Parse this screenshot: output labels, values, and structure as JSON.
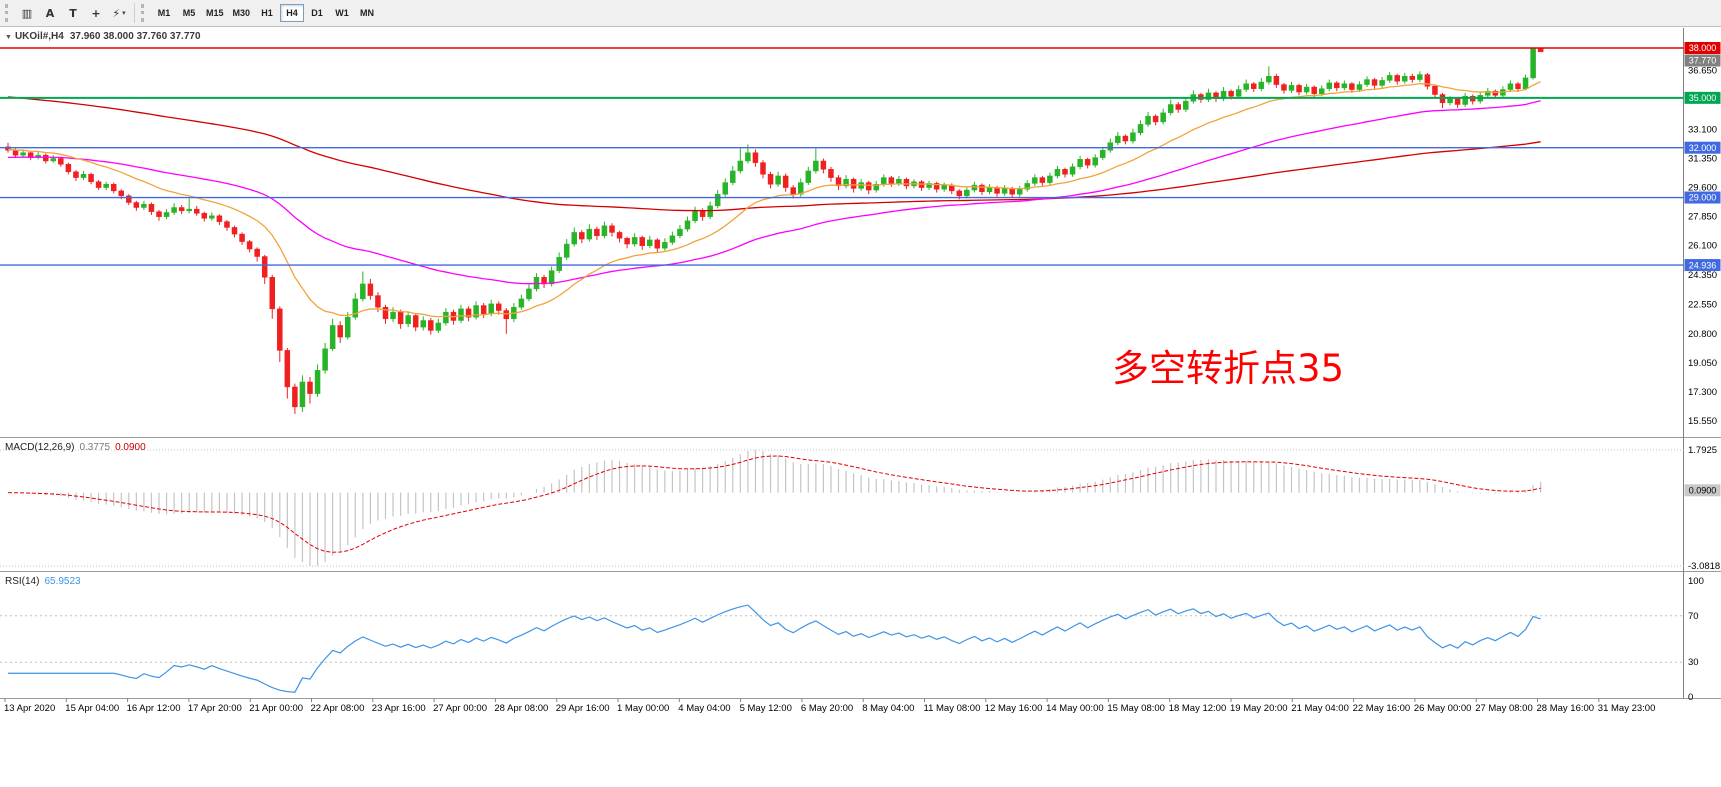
{
  "toolbar": {
    "left_icons": [
      {
        "name": "chart-type-icon",
        "glyph": "▥"
      },
      {
        "name": "text-tool-icon",
        "glyph": "A"
      },
      {
        "name": "text-label-tool-icon",
        "glyph": "T"
      },
      {
        "name": "crosshair-tool-icon",
        "glyph": "+"
      },
      {
        "name": "indicators-tool-icon",
        "glyph": "⚡",
        "dropdown": true
      }
    ],
    "timeframes": [
      "M1",
      "M5",
      "M15",
      "M30",
      "H1",
      "H4",
      "D1",
      "W1",
      "MN"
    ],
    "active_timeframe": "H4"
  },
  "chart_data": {
    "type": "candlestick",
    "symbol": "UKOil#",
    "timeframe": "H4",
    "title_text": "UKOil#,H4",
    "ohlc_text": "37.960 38.000 37.760 37.770",
    "current": {
      "open": 37.96,
      "high": 38.0,
      "low": 37.76,
      "close": 37.77
    },
    "colors": {
      "up": "#28b428",
      "down": "#ef2020",
      "background": "#ffffff"
    },
    "price_axis_labels": [
      "36.650",
      "33.100",
      "31.350",
      "29.600",
      "27.850",
      "26.100",
      "24.350",
      "22.550",
      "20.800",
      "19.050",
      "17.300",
      "15.550"
    ],
    "hlines": [
      {
        "value": 38.0,
        "color": "#e00000",
        "label": "38.000",
        "width": 1.4
      },
      {
        "value": 35.0,
        "color": "#00a651",
        "label": "35.000",
        "width": 2
      },
      {
        "value": 32.0,
        "color": "#4169e1",
        "label": "32.000",
        "width": 1.4
      },
      {
        "value": 29.0,
        "color": "#4169e1",
        "label": "29.000",
        "width": 1.4
      },
      {
        "value": 24.936,
        "color": "#4169e1",
        "label": "24.936",
        "width": 1.4
      }
    ],
    "current_price_badge": {
      "value": 37.77,
      "label": "37.770",
      "bg": "#808080"
    },
    "mas": [
      {
        "name": "ma-slow-red",
        "color": "#d40000",
        "period": 160,
        "seed": 35.1
      },
      {
        "name": "ma-mid-magenta",
        "color": "#ff00ff",
        "period": 56,
        "seed": 31.4
      },
      {
        "name": "ma-fast-orange",
        "color": "#f2a33c",
        "period": 18,
        "seed": 31.9
      }
    ],
    "macd": {
      "label": "MACD(12,26,9)",
      "value_main": "0.3775",
      "value_signal": "0.0900",
      "fast": 12,
      "slow": 26,
      "signal": 9,
      "scale_max": 1.7925,
      "scale_min": -3.0818,
      "scale_max_label": "1.7925",
      "scale_min_label": "-3.0818",
      "hist_color": "#c4c4c4",
      "signal_color": "#e00000",
      "current_badge": {
        "value": 0.09,
        "label": "0.0900",
        "bg": "#c8c8c8"
      }
    },
    "rsi": {
      "label": "RSI(14)",
      "value": "65.9523",
      "period": 14,
      "line_color": "#3d95e8",
      "levels": [
        "100",
        "70",
        "30",
        "0"
      ],
      "level_lines": [
        70,
        30
      ]
    },
    "annotation": {
      "text": "多空转折点35",
      "color": "#ff0000"
    },
    "time_labels": [
      "13 Apr 2020",
      "15 Apr 04:00",
      "16 Apr 12:00",
      "17 Apr 20:00",
      "21 Apr 00:00",
      "22 Apr 08:00",
      "23 Apr 16:00",
      "27 Apr 00:00",
      "28 Apr 08:00",
      "29 Apr 16:00",
      "1 May 00:00",
      "4 May 04:00",
      "5 May 12:00",
      "6 May 20:00",
      "8 May 04:00",
      "11 May 08:00",
      "12 May 16:00",
      "14 May 00:00",
      "15 May 08:00",
      "18 May 12:00",
      "19 May 20:00",
      "21 May 04:00",
      "22 May 16:00",
      "26 May 00:00",
      "27 May 08:00",
      "28 May 16:00",
      "31 May 23:00"
    ],
    "candles": [
      [
        32.05,
        32.3,
        31.7,
        31.85
      ],
      [
        31.85,
        31.95,
        31.4,
        31.55
      ],
      [
        31.55,
        31.9,
        31.45,
        31.7
      ],
      [
        31.7,
        31.8,
        31.25,
        31.4
      ],
      [
        31.4,
        31.75,
        31.3,
        31.55
      ],
      [
        31.55,
        31.65,
        31.05,
        31.2
      ],
      [
        31.2,
        31.55,
        31.1,
        31.35
      ],
      [
        31.35,
        31.45,
        30.85,
        31.0
      ],
      [
        31.0,
        31.1,
        30.4,
        30.55
      ],
      [
        30.55,
        30.65,
        30.0,
        30.2
      ],
      [
        30.2,
        30.6,
        30.05,
        30.4
      ],
      [
        30.4,
        30.5,
        29.8,
        29.95
      ],
      [
        29.95,
        30.05,
        29.45,
        29.6
      ],
      [
        29.6,
        29.95,
        29.45,
        29.8
      ],
      [
        29.8,
        29.9,
        29.25,
        29.4
      ],
      [
        29.4,
        29.5,
        28.9,
        29.1
      ],
      [
        29.1,
        29.2,
        28.55,
        28.7
      ],
      [
        28.7,
        28.8,
        28.2,
        28.4
      ],
      [
        28.4,
        28.8,
        28.25,
        28.6
      ],
      [
        28.6,
        28.7,
        27.95,
        28.15
      ],
      [
        28.15,
        28.25,
        27.6,
        27.85
      ],
      [
        27.85,
        28.3,
        27.7,
        28.1
      ],
      [
        28.1,
        28.65,
        27.95,
        28.4
      ],
      [
        28.4,
        28.55,
        28.0,
        28.2
      ],
      [
        28.2,
        28.95,
        28.05,
        28.3
      ],
      [
        28.3,
        28.5,
        27.9,
        28.05
      ],
      [
        28.05,
        28.15,
        27.55,
        27.75
      ],
      [
        27.75,
        28.1,
        27.6,
        27.9
      ],
      [
        27.9,
        28.0,
        27.35,
        27.55
      ],
      [
        27.55,
        27.65,
        27.0,
        27.2
      ],
      [
        27.2,
        27.3,
        26.6,
        26.8
      ],
      [
        26.8,
        26.9,
        26.15,
        26.35
      ],
      [
        26.35,
        26.45,
        25.7,
        25.9
      ],
      [
        25.9,
        26.0,
        25.15,
        25.45
      ],
      [
        25.45,
        25.55,
        23.8,
        24.2
      ],
      [
        24.2,
        24.35,
        21.7,
        22.3
      ],
      [
        22.3,
        22.45,
        19.1,
        19.8
      ],
      [
        19.8,
        19.95,
        16.9,
        17.6
      ],
      [
        17.6,
        17.8,
        15.98,
        16.4
      ],
      [
        16.4,
        18.3,
        16.1,
        17.9
      ],
      [
        17.9,
        18.2,
        16.6,
        17.2
      ],
      [
        17.2,
        18.95,
        17.0,
        18.6
      ],
      [
        18.6,
        20.25,
        18.4,
        19.9
      ],
      [
        19.9,
        21.7,
        19.75,
        21.3
      ],
      [
        21.3,
        21.55,
        20.25,
        20.6
      ],
      [
        20.6,
        22.1,
        20.45,
        21.8
      ],
      [
        21.8,
        23.25,
        21.65,
        22.9
      ],
      [
        22.9,
        24.55,
        22.75,
        23.8
      ],
      [
        23.8,
        24.1,
        22.85,
        23.1
      ],
      [
        23.1,
        23.3,
        22.1,
        22.4
      ],
      [
        22.4,
        22.55,
        21.4,
        21.7
      ],
      [
        21.7,
        22.4,
        21.5,
        22.1
      ],
      [
        22.1,
        22.25,
        21.1,
        21.4
      ],
      [
        21.4,
        22.15,
        21.2,
        21.9
      ],
      [
        21.9,
        22.05,
        20.95,
        21.2
      ],
      [
        21.2,
        21.85,
        21.0,
        21.6
      ],
      [
        21.6,
        21.75,
        20.75,
        21.0
      ],
      [
        21.0,
        21.7,
        20.85,
        21.45
      ],
      [
        21.45,
        22.35,
        21.3,
        22.1
      ],
      [
        22.1,
        22.25,
        21.35,
        21.6
      ],
      [
        21.6,
        22.55,
        21.45,
        22.3
      ],
      [
        22.3,
        22.45,
        21.55,
        21.8
      ],
      [
        21.8,
        22.75,
        21.65,
        22.5
      ],
      [
        22.5,
        22.65,
        21.75,
        22.0
      ],
      [
        22.0,
        22.85,
        21.85,
        22.6
      ],
      [
        22.6,
        22.75,
        21.95,
        22.2
      ],
      [
        22.2,
        22.35,
        20.8,
        21.7
      ],
      [
        21.7,
        22.65,
        21.5,
        22.4
      ],
      [
        22.4,
        23.15,
        22.25,
        22.9
      ],
      [
        22.9,
        23.75,
        22.75,
        23.5
      ],
      [
        23.5,
        24.45,
        23.35,
        24.2
      ],
      [
        24.2,
        24.35,
        23.55,
        23.8
      ],
      [
        23.8,
        24.85,
        23.65,
        24.6
      ],
      [
        24.6,
        25.7,
        24.45,
        25.4
      ],
      [
        25.4,
        26.5,
        25.25,
        26.2
      ],
      [
        26.2,
        27.2,
        26.05,
        26.9
      ],
      [
        26.9,
        27.05,
        26.25,
        26.5
      ],
      [
        26.5,
        27.4,
        26.35,
        27.1
      ],
      [
        27.1,
        27.25,
        26.45,
        26.7
      ],
      [
        26.7,
        27.55,
        26.55,
        27.3
      ],
      [
        27.3,
        27.45,
        26.65,
        26.9
      ],
      [
        26.9,
        27.0,
        26.3,
        26.55
      ],
      [
        26.55,
        26.65,
        25.95,
        26.2
      ],
      [
        26.2,
        26.85,
        26.05,
        26.6
      ],
      [
        26.6,
        26.7,
        25.85,
        26.1
      ],
      [
        26.1,
        26.7,
        25.95,
        26.45
      ],
      [
        26.45,
        26.55,
        25.7,
        25.95
      ],
      [
        25.95,
        26.55,
        25.8,
        26.3
      ],
      [
        26.3,
        26.95,
        26.15,
        26.7
      ],
      [
        26.7,
        27.35,
        26.55,
        27.1
      ],
      [
        27.1,
        27.85,
        26.95,
        27.6
      ],
      [
        27.6,
        28.45,
        27.45,
        28.2
      ],
      [
        28.2,
        28.35,
        27.6,
        27.85
      ],
      [
        27.85,
        28.75,
        27.7,
        28.5
      ],
      [
        28.5,
        29.45,
        28.35,
        29.2
      ],
      [
        29.2,
        30.15,
        29.05,
        29.9
      ],
      [
        29.9,
        30.9,
        29.75,
        30.6
      ],
      [
        30.6,
        31.95,
        30.45,
        31.2
      ],
      [
        31.2,
        32.2,
        31.05,
        31.7
      ],
      [
        31.7,
        31.9,
        30.85,
        31.1
      ],
      [
        31.1,
        31.25,
        30.15,
        30.4
      ],
      [
        30.4,
        30.55,
        29.55,
        29.8
      ],
      [
        29.8,
        30.55,
        29.65,
        30.3
      ],
      [
        30.3,
        30.45,
        29.35,
        29.6
      ],
      [
        29.6,
        29.75,
        28.95,
        29.2
      ],
      [
        29.2,
        30.15,
        29.05,
        29.9
      ],
      [
        29.9,
        30.85,
        29.75,
        30.6
      ],
      [
        30.6,
        31.95,
        30.45,
        31.2
      ],
      [
        31.2,
        31.35,
        30.45,
        30.7
      ],
      [
        30.7,
        30.85,
        29.95,
        30.2
      ],
      [
        30.2,
        30.35,
        29.45,
        29.7
      ],
      [
        29.7,
        30.35,
        29.55,
        30.1
      ],
      [
        30.1,
        30.2,
        29.3,
        29.55
      ],
      [
        29.55,
        30.1,
        29.4,
        29.9
      ],
      [
        29.9,
        30.0,
        29.2,
        29.45
      ],
      [
        29.45,
        30.0,
        29.3,
        29.8
      ],
      [
        29.8,
        30.4,
        29.65,
        30.2
      ],
      [
        30.2,
        30.3,
        29.65,
        29.85
      ],
      [
        29.85,
        30.3,
        29.7,
        30.1
      ],
      [
        30.1,
        30.2,
        29.5,
        29.7
      ],
      [
        29.7,
        30.1,
        29.55,
        29.95
      ],
      [
        29.95,
        30.05,
        29.4,
        29.6
      ],
      [
        29.6,
        30.0,
        29.45,
        29.85
      ],
      [
        29.85,
        29.95,
        29.3,
        29.5
      ],
      [
        29.5,
        29.9,
        29.35,
        29.75
      ],
      [
        29.75,
        29.85,
        29.2,
        29.4
      ],
      [
        29.4,
        29.5,
        28.9,
        29.1
      ],
      [
        29.1,
        29.6,
        28.95,
        29.45
      ],
      [
        29.45,
        29.95,
        29.3,
        29.75
      ],
      [
        29.75,
        29.85,
        29.15,
        29.35
      ],
      [
        29.35,
        29.8,
        29.2,
        29.6
      ],
      [
        29.6,
        29.7,
        29.05,
        29.25
      ],
      [
        29.25,
        29.75,
        29.1,
        29.55
      ],
      [
        29.55,
        29.65,
        29.0,
        29.2
      ],
      [
        29.2,
        29.7,
        29.05,
        29.5
      ],
      [
        29.5,
        30.05,
        29.35,
        29.85
      ],
      [
        29.85,
        30.4,
        29.7,
        30.2
      ],
      [
        30.2,
        30.3,
        29.7,
        29.9
      ],
      [
        29.9,
        30.5,
        29.75,
        30.3
      ],
      [
        30.3,
        30.9,
        30.15,
        30.7
      ],
      [
        30.7,
        30.8,
        30.2,
        30.4
      ],
      [
        30.4,
        31.05,
        30.25,
        30.85
      ],
      [
        30.85,
        31.5,
        30.7,
        31.3
      ],
      [
        31.3,
        31.4,
        30.75,
        30.95
      ],
      [
        30.95,
        31.6,
        30.8,
        31.4
      ],
      [
        31.4,
        32.05,
        31.25,
        31.85
      ],
      [
        31.85,
        32.55,
        31.7,
        32.3
      ],
      [
        32.3,
        32.95,
        32.15,
        32.7
      ],
      [
        32.7,
        32.8,
        32.2,
        32.4
      ],
      [
        32.4,
        33.15,
        32.25,
        32.9
      ],
      [
        32.9,
        33.65,
        32.75,
        33.4
      ],
      [
        33.4,
        34.15,
        33.25,
        33.9
      ],
      [
        33.9,
        34.0,
        33.35,
        33.55
      ],
      [
        33.55,
        34.35,
        33.4,
        34.1
      ],
      [
        34.1,
        34.9,
        33.95,
        34.6
      ],
      [
        34.6,
        34.75,
        34.1,
        34.3
      ],
      [
        34.3,
        35.05,
        34.15,
        34.8
      ],
      [
        34.8,
        35.45,
        34.65,
        35.2
      ],
      [
        35.2,
        35.3,
        34.7,
        34.9
      ],
      [
        34.9,
        35.55,
        34.75,
        35.3
      ],
      [
        35.3,
        35.4,
        34.75,
        34.95
      ],
      [
        34.95,
        35.65,
        34.8,
        35.4
      ],
      [
        35.4,
        35.5,
        34.9,
        35.1
      ],
      [
        35.1,
        35.75,
        34.95,
        35.5
      ],
      [
        35.5,
        36.1,
        35.35,
        35.85
      ],
      [
        35.85,
        35.95,
        35.35,
        35.55
      ],
      [
        35.55,
        36.2,
        35.4,
        35.95
      ],
      [
        35.95,
        36.9,
        35.8,
        36.3
      ],
      [
        36.3,
        36.45,
        35.6,
        35.8
      ],
      [
        35.8,
        35.9,
        35.25,
        35.45
      ],
      [
        35.45,
        35.95,
        35.3,
        35.75
      ],
      [
        35.75,
        35.85,
        35.15,
        35.35
      ],
      [
        35.35,
        35.85,
        35.2,
        35.65
      ],
      [
        35.65,
        35.75,
        35.05,
        35.25
      ],
      [
        35.25,
        35.75,
        35.1,
        35.55
      ],
      [
        35.55,
        36.1,
        35.4,
        35.9
      ],
      [
        35.9,
        36.0,
        35.4,
        35.6
      ],
      [
        35.6,
        36.05,
        35.45,
        35.85
      ],
      [
        35.85,
        35.95,
        35.3,
        35.5
      ],
      [
        35.5,
        36.0,
        35.35,
        35.8
      ],
      [
        35.8,
        36.3,
        35.65,
        36.1
      ],
      [
        36.1,
        36.2,
        35.55,
        35.75
      ],
      [
        35.75,
        36.25,
        35.6,
        36.05
      ],
      [
        36.05,
        36.55,
        35.9,
        36.35
      ],
      [
        36.35,
        36.45,
        35.8,
        36.0
      ],
      [
        36.0,
        36.5,
        35.85,
        36.3
      ],
      [
        36.3,
        36.45,
        35.9,
        36.1
      ],
      [
        36.1,
        36.6,
        35.95,
        36.4
      ],
      [
        36.4,
        36.5,
        35.5,
        35.7
      ],
      [
        35.7,
        35.8,
        35.0,
        35.2
      ],
      [
        35.2,
        35.3,
        34.38,
        34.7
      ],
      [
        34.7,
        35.1,
        34.55,
        34.95
      ],
      [
        34.95,
        35.05,
        34.4,
        34.6
      ],
      [
        34.6,
        35.3,
        34.45,
        35.1
      ],
      [
        35.1,
        35.2,
        34.6,
        34.8
      ],
      [
        34.8,
        35.35,
        34.65,
        35.15
      ],
      [
        35.15,
        35.6,
        35.0,
        35.4
      ],
      [
        35.4,
        35.5,
        34.95,
        35.15
      ],
      [
        35.15,
        35.7,
        35.0,
        35.5
      ],
      [
        35.5,
        36.05,
        35.35,
        35.85
      ],
      [
        35.85,
        35.95,
        35.35,
        35.55
      ],
      [
        35.55,
        36.4,
        35.45,
        36.2
      ],
      [
        36.2,
        38.0,
        36.1,
        37.96
      ],
      [
        37.96,
        38.0,
        37.76,
        37.77
      ]
    ]
  }
}
